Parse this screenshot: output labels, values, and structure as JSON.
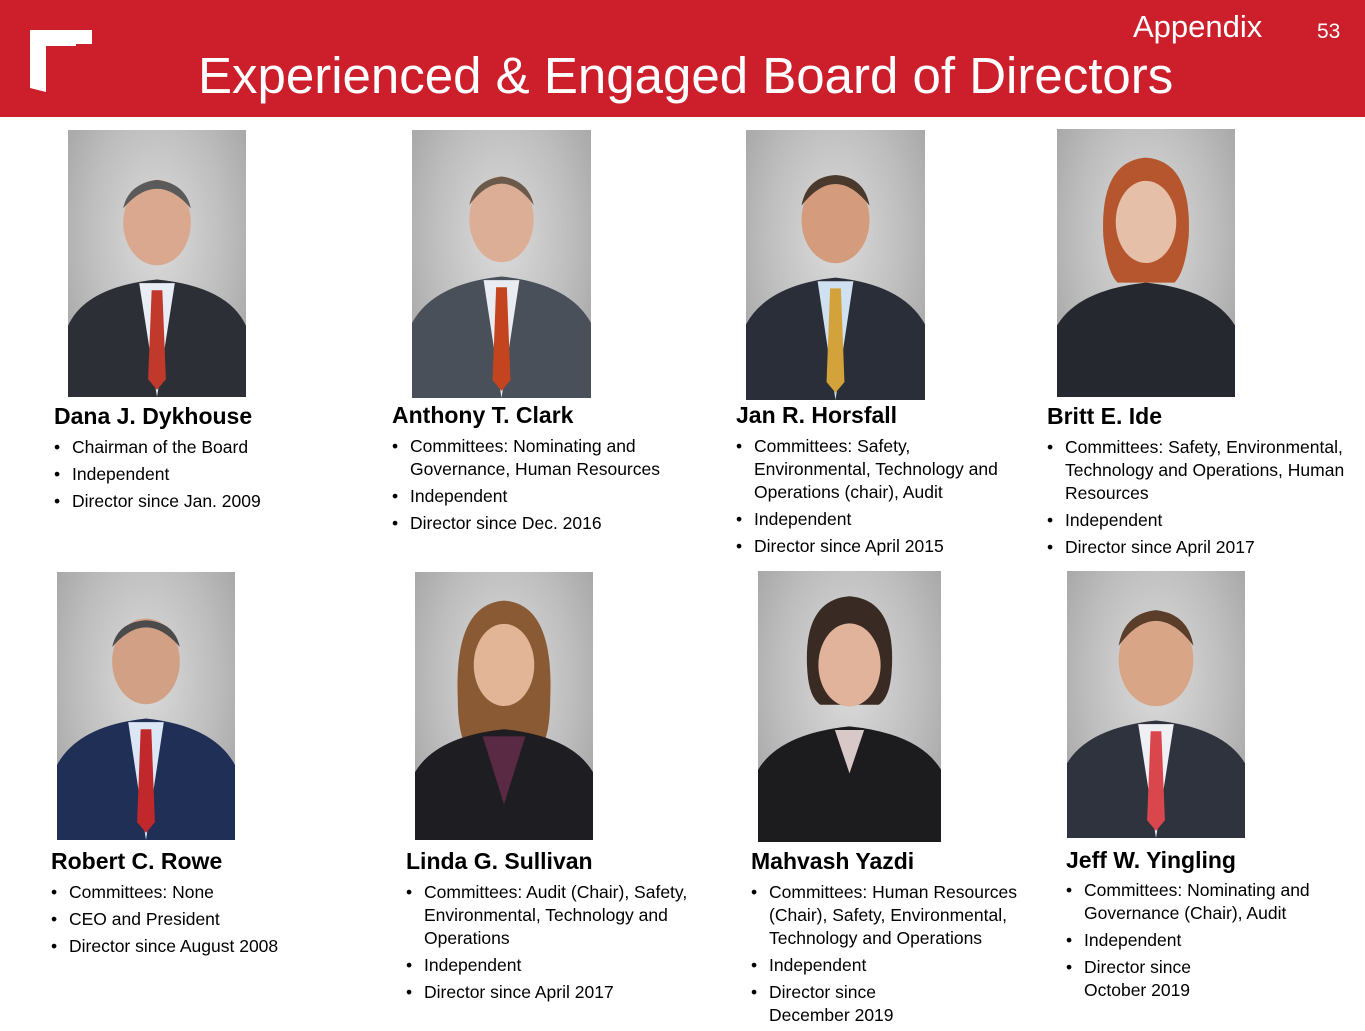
{
  "header": {
    "section_label": "Appendix",
    "page_number": "53",
    "title": "Experienced & Engaged Board of Directors",
    "accent_color": "#cc1f2b"
  },
  "directors": [
    {
      "name": "Dana J. Dykhouse",
      "bullets": [
        "Chairman of the Board",
        "Independent",
        "Director since Jan. 2009"
      ]
    },
    {
      "name": "Anthony T. Clark",
      "bullets": [
        "Committees:  Nominating and Governance, Human Resources",
        "Independent",
        "Director since Dec. 2016"
      ]
    },
    {
      "name": "Jan R. Horsfall",
      "bullets": [
        "Committees:  Safety, Environmental, Technology and Operations (chair), Audit",
        "Independent",
        "Director since April 2015"
      ]
    },
    {
      "name": "Britt E. Ide",
      "bullets": [
        "Committees: Safety, Environmental, Technology and Operations, Human Resources",
        "Independent",
        "Director since April 2017"
      ]
    },
    {
      "name": "Robert C. Rowe",
      "bullets": [
        "Committees:  None",
        "CEO and President",
        "Director since August 2008"
      ]
    },
    {
      "name": "Linda G. Sullivan",
      "bullets": [
        "Committees:  Audit (Chair), Safety, Environmental, Technology and Operations",
        "Independent",
        "Director since April 2017"
      ]
    },
    {
      "name": "Mahvash Yazdi",
      "bullets": [
        "Committees:  Human Resources (Chair), Safety, Environmental, Technology and Operations",
        "Independent",
        "Director since December 2019"
      ]
    },
    {
      "name": "Jeff W. Yingling",
      "bullets": [
        "Committees:  Nominating and Governance (Chair), Audit",
        "Independent",
        "Director since October 2019"
      ]
    }
  ]
}
